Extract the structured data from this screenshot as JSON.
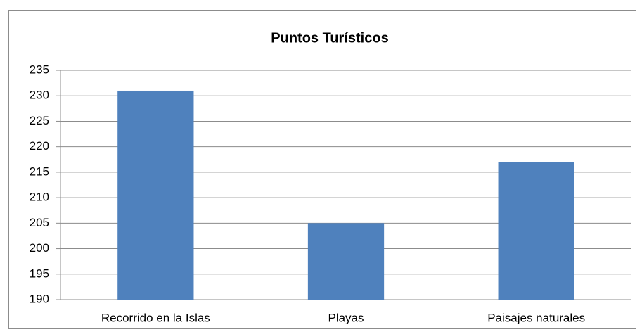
{
  "chart_data": {
    "type": "bar",
    "title": "Puntos Turísticos",
    "categories": [
      "Recorrido en la Islas",
      "Playas",
      "Paisajes naturales"
    ],
    "values": [
      231,
      205,
      217
    ],
    "color": "#4f81bd",
    "ylim": [
      190,
      235
    ],
    "yticks": [
      190,
      195,
      200,
      205,
      210,
      215,
      220,
      225,
      230,
      235
    ],
    "grid": true
  }
}
